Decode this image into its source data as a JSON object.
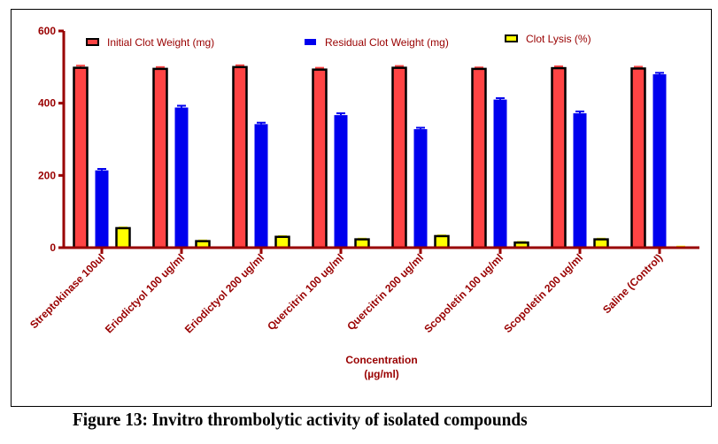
{
  "caption": "Figure 13: Invitro thrombolytic activity of isolated compounds",
  "chart_data": {
    "type": "bar",
    "title": "",
    "xlabel": "Concentration (µg/ml)",
    "xlabel_lines": [
      "Concentration",
      "(µg/ml)"
    ],
    "ylabel": "",
    "ylim": [
      0,
      600
    ],
    "yticks": [
      0,
      200,
      400,
      600
    ],
    "grid": false,
    "legend_position": "top",
    "categories": [
      "Streptokinase 100ul",
      "Eriodictyol 100 ug/ml",
      "Eriodictyol 200 ug/ml",
      "Quercitrin 100 ug/ml",
      "Quercitrin 200 ug/ml",
      "Scopoletin 100 ug/ml",
      "Scopoletin 200 ug/ml",
      "Saline (Control)"
    ],
    "series": [
      {
        "name": "Initial Clot Weight (mg)",
        "color": "#ff4444",
        "error_color": "#ff4444",
        "outlined": true,
        "values": [
          498,
          495,
          500,
          493,
          498,
          495,
          497,
          496
        ],
        "errors": [
          6,
          5,
          5,
          5,
          5,
          4,
          5,
          5
        ]
      },
      {
        "name": "Residual Clot Weight (mg)",
        "color": "#0000ee",
        "error_color": "#0000ee",
        "outlined": false,
        "values": [
          214,
          388,
          342,
          367,
          328,
          410,
          372,
          480
        ],
        "errors": [
          4,
          5,
          4,
          5,
          4,
          4,
          5,
          4
        ]
      },
      {
        "name": "Clot Lysis (%)",
        "color": "#ffff00",
        "error_color": "#ffff00",
        "outlined": true,
        "values": [
          54,
          18,
          30,
          23,
          32,
          14,
          23,
          2
        ],
        "errors": [
          2,
          2,
          2,
          2,
          2,
          2,
          2,
          1
        ]
      }
    ]
  },
  "colors": {
    "axis": "#990000",
    "text": "#990000",
    "outline": "#000000"
  }
}
